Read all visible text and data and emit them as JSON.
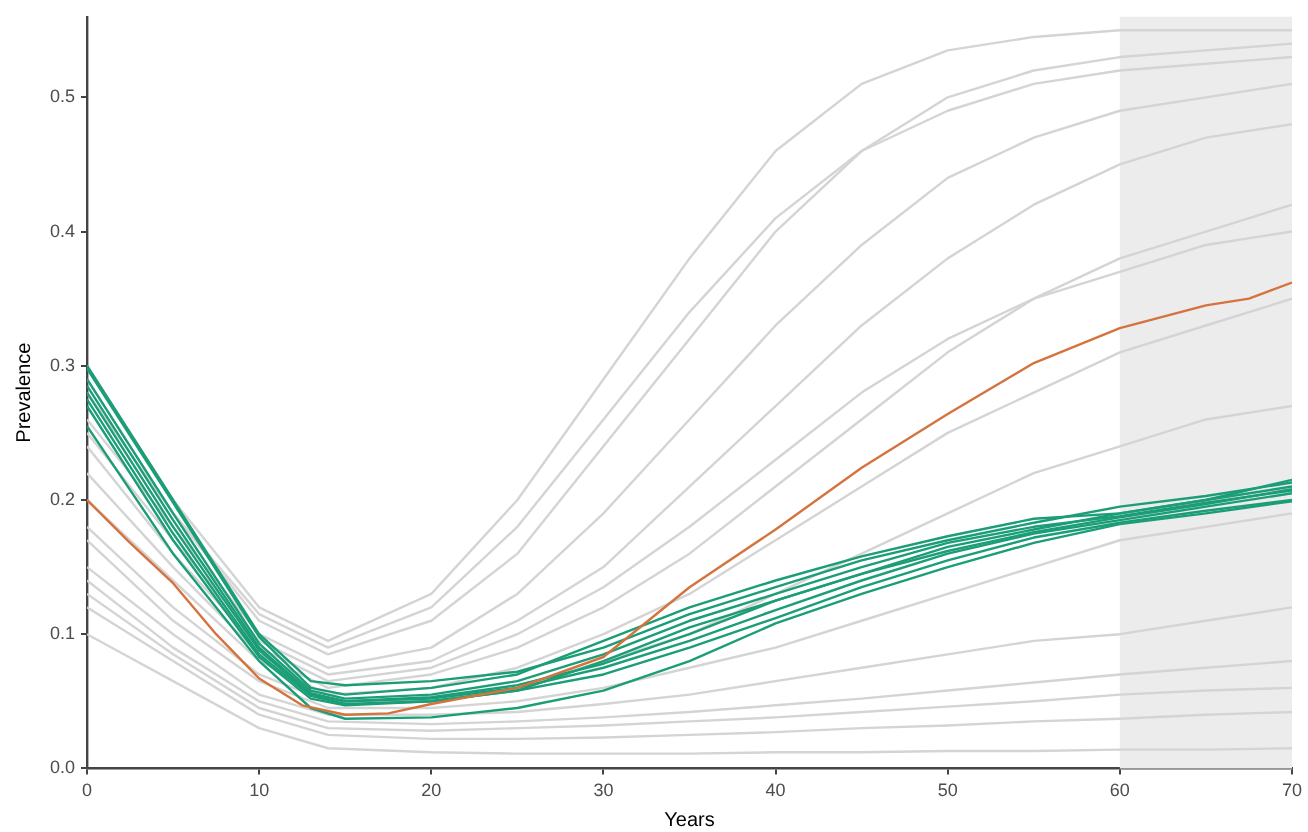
{
  "chart_data": {
    "type": "line",
    "xlabel": "Years",
    "ylabel": "Prevalence",
    "x": [
      0,
      5,
      10,
      14,
      20,
      25,
      30,
      35,
      40,
      45,
      50,
      55,
      60,
      65,
      70
    ],
    "xlim": [
      0,
      70
    ],
    "xticks": [
      0,
      10,
      20,
      30,
      40,
      50,
      60,
      70
    ],
    "ylim": [
      0,
      0.56
    ],
    "yticks": [
      {
        "value": 0,
        "label": "0.0"
      },
      {
        "value": 0.1,
        "label": "0.1"
      },
      {
        "value": 0.2,
        "label": "0.2"
      },
      {
        "value": 0.3,
        "label": "0.3"
      },
      {
        "value": 0.4,
        "label": "0.4"
      },
      {
        "value": 0.5,
        "label": "0.5"
      }
    ],
    "grid": false,
    "legend": false,
    "marker": "none",
    "line_style": "solid",
    "bands": [
      {
        "axis": "x",
        "from": 60,
        "to": 70,
        "color": "#ececec"
      }
    ],
    "series": [
      {
        "color": "#d4d4d4",
        "values": [
          0.3,
          0.2,
          0.12,
          0.095,
          0.13,
          0.2,
          0.29,
          0.38,
          0.46,
          0.51,
          0.535,
          0.545,
          0.55,
          0.55,
          0.55
        ]
      },
      {
        "color": "#d4d4d4",
        "values": [
          0.29,
          0.19,
          0.115,
          0.09,
          0.12,
          0.18,
          0.26,
          0.34,
          0.41,
          0.46,
          0.49,
          0.51,
          0.52,
          0.525,
          0.53
        ]
      },
      {
        "color": "#d4d4d4",
        "values": [
          0.28,
          0.19,
          0.11,
          0.085,
          0.11,
          0.16,
          0.24,
          0.32,
          0.4,
          0.46,
          0.5,
          0.52,
          0.53,
          0.535,
          0.54
        ]
      },
      {
        "color": "#d4d4d4",
        "values": [
          0.26,
          0.18,
          0.1,
          0.075,
          0.09,
          0.13,
          0.19,
          0.26,
          0.33,
          0.39,
          0.44,
          0.47,
          0.49,
          0.5,
          0.51
        ]
      },
      {
        "color": "#d4d4d4",
        "values": [
          0.25,
          0.17,
          0.095,
          0.07,
          0.08,
          0.11,
          0.15,
          0.21,
          0.27,
          0.33,
          0.38,
          0.42,
          0.45,
          0.47,
          0.48
        ]
      },
      {
        "color": "#d4d4d4",
        "values": [
          0.24,
          0.16,
          0.09,
          0.065,
          0.075,
          0.1,
          0.135,
          0.18,
          0.23,
          0.28,
          0.32,
          0.35,
          0.37,
          0.39,
          0.4
        ]
      },
      {
        "color": "#d4d4d4",
        "values": [
          0.22,
          0.15,
          0.085,
          0.06,
          0.07,
          0.09,
          0.12,
          0.16,
          0.21,
          0.26,
          0.31,
          0.35,
          0.38,
          0.4,
          0.42
        ]
      },
      {
        "color": "#d4d4d4",
        "values": [
          0.2,
          0.14,
          0.08,
          0.055,
          0.06,
          0.075,
          0.1,
          0.13,
          0.17,
          0.21,
          0.25,
          0.28,
          0.31,
          0.33,
          0.35
        ]
      },
      {
        "color": "#d4d4d4",
        "values": [
          0.18,
          0.12,
          0.07,
          0.05,
          0.05,
          0.06,
          0.08,
          0.1,
          0.13,
          0.16,
          0.19,
          0.22,
          0.24,
          0.26,
          0.27
        ]
      },
      {
        "color": "#d4d4d4",
        "values": [
          0.17,
          0.11,
          0.065,
          0.045,
          0.045,
          0.05,
          0.06,
          0.075,
          0.09,
          0.11,
          0.13,
          0.15,
          0.17,
          0.18,
          0.19
        ]
      },
      {
        "color": "#d4d4d4",
        "values": [
          0.15,
          0.1,
          0.055,
          0.04,
          0.04,
          0.042,
          0.048,
          0.055,
          0.065,
          0.075,
          0.085,
          0.095,
          0.1,
          0.11,
          0.12
        ]
      },
      {
        "color": "#d4d4d4",
        "values": [
          0.14,
          0.09,
          0.05,
          0.035,
          0.033,
          0.035,
          0.038,
          0.042,
          0.047,
          0.052,
          0.058,
          0.064,
          0.07,
          0.075,
          0.08
        ]
      },
      {
        "color": "#d4d4d4",
        "values": [
          0.13,
          0.085,
          0.045,
          0.03,
          0.028,
          0.03,
          0.032,
          0.035,
          0.038,
          0.042,
          0.046,
          0.05,
          0.055,
          0.058,
          0.06
        ]
      },
      {
        "color": "#d4d4d4",
        "values": [
          0.12,
          0.08,
          0.04,
          0.025,
          0.022,
          0.022,
          0.023,
          0.025,
          0.027,
          0.03,
          0.032,
          0.035,
          0.037,
          0.04,
          0.042
        ]
      },
      {
        "color": "#d4d4d4",
        "values": [
          0.1,
          0.065,
          0.03,
          0.015,
          0.012,
          0.011,
          0.011,
          0.011,
          0.012,
          0.012,
          0.013,
          0.013,
          0.014,
          0.014,
          0.015
        ]
      },
      {
        "color": "#1b9e77",
        "x": [
          0,
          5,
          10,
          13,
          15,
          20,
          25,
          30,
          35,
          40,
          45,
          50,
          55,
          60,
          65,
          70
        ],
        "values": [
          0.3,
          0.2,
          0.1,
          0.065,
          0.062,
          0.065,
          0.072,
          0.09,
          0.115,
          0.135,
          0.155,
          0.17,
          0.183,
          0.195,
          0.203,
          0.213
        ]
      },
      {
        "color": "#1b9e77",
        "x": [
          0,
          5,
          10,
          13,
          15,
          20,
          25,
          30,
          35,
          40,
          45,
          50,
          55,
          60,
          65,
          70
        ],
        "values": [
          0.298,
          0.198,
          0.098,
          0.06,
          0.055,
          0.06,
          0.07,
          0.095,
          0.12,
          0.14,
          0.158,
          0.173,
          0.186,
          0.19,
          0.2,
          0.21
        ]
      },
      {
        "color": "#1b9e77",
        "x": [
          0,
          5,
          10,
          13,
          15,
          20,
          25,
          30,
          35,
          40,
          45,
          50,
          55,
          60,
          65,
          70
        ],
        "values": [
          0.29,
          0.19,
          0.093,
          0.058,
          0.052,
          0.055,
          0.065,
          0.085,
          0.11,
          0.13,
          0.15,
          0.168,
          0.18,
          0.188,
          0.198,
          0.207
        ]
      },
      {
        "color": "#1b9e77",
        "x": [
          0,
          5,
          10,
          13,
          15,
          20,
          25,
          30,
          35,
          40,
          45,
          50,
          55,
          60,
          65,
          70
        ],
        "values": [
          0.285,
          0.185,
          0.09,
          0.056,
          0.05,
          0.053,
          0.062,
          0.078,
          0.1,
          0.125,
          0.145,
          0.165,
          0.178,
          0.19,
          0.2,
          0.215
        ]
      },
      {
        "color": "#1b9e77",
        "x": [
          0,
          5,
          10,
          13,
          15,
          20,
          25,
          30,
          35,
          40,
          45,
          50,
          55,
          60,
          65,
          70
        ],
        "values": [
          0.28,
          0.18,
          0.088,
          0.055,
          0.05,
          0.052,
          0.06,
          0.075,
          0.095,
          0.118,
          0.14,
          0.16,
          0.175,
          0.185,
          0.195,
          0.205
        ]
      },
      {
        "color": "#1b9e77",
        "x": [
          0,
          5,
          10,
          13,
          15,
          20,
          25,
          30,
          35,
          40,
          45,
          50,
          55,
          60,
          65,
          70
        ],
        "values": [
          0.275,
          0.175,
          0.085,
          0.054,
          0.048,
          0.05,
          0.058,
          0.07,
          0.09,
          0.112,
          0.135,
          0.155,
          0.172,
          0.183,
          0.192,
          0.2
        ]
      },
      {
        "color": "#1b9e77",
        "x": [
          0,
          5,
          10,
          13,
          15,
          20,
          25,
          30,
          35,
          40,
          45,
          50,
          55,
          60,
          65,
          70
        ],
        "values": [
          0.27,
          0.17,
          0.083,
          0.052,
          0.047,
          0.05,
          0.058,
          0.08,
          0.105,
          0.125,
          0.145,
          0.162,
          0.176,
          0.187,
          0.197,
          0.208
        ]
      },
      {
        "color": "#1b9e77",
        "x": [
          0,
          5,
          10,
          13,
          15,
          20,
          25,
          30,
          35,
          40,
          45,
          50,
          55,
          60,
          65,
          70
        ],
        "values": [
          0.255,
          0.16,
          0.08,
          0.045,
          0.037,
          0.038,
          0.045,
          0.058,
          0.08,
          0.108,
          0.13,
          0.15,
          0.168,
          0.182,
          0.19,
          0.199
        ]
      },
      {
        "color": "#d4733e",
        "x": [
          0,
          2.5,
          5,
          7.5,
          10,
          12.5,
          15,
          17.5,
          20,
          25,
          30,
          35,
          40,
          45,
          50,
          55,
          60,
          65,
          67.5,
          70
        ],
        "values": [
          0.2,
          0.168,
          0.138,
          0.1,
          0.067,
          0.047,
          0.04,
          0.041,
          0.048,
          0.06,
          0.083,
          0.135,
          0.178,
          0.224,
          0.264,
          0.302,
          0.328,
          0.345,
          0.35,
          0.362
        ]
      }
    ]
  }
}
